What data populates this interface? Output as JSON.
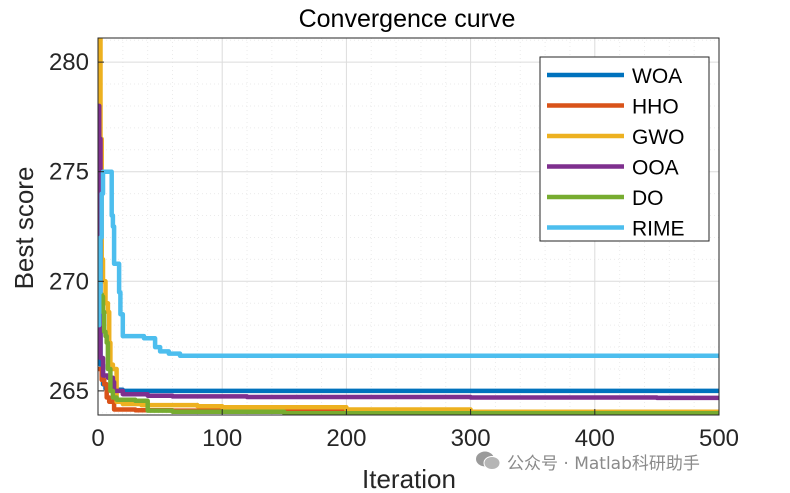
{
  "chart_data": {
    "type": "line",
    "title": "Convergence curve",
    "xlabel": "Iteration",
    "ylabel": "Best score",
    "xlim": [
      0,
      500
    ],
    "ylim": [
      263.9,
      281.1
    ],
    "xticks": [
      0,
      100,
      200,
      300,
      400,
      500
    ],
    "yticks": [
      265,
      270,
      275,
      280
    ],
    "grid": true,
    "minor_grid": true,
    "legend_position": "top-right",
    "series": [
      {
        "name": "WOA",
        "color": "#0072BD",
        "points": [
          [
            0,
            273.0
          ],
          [
            1,
            268.0
          ],
          [
            2,
            266.2
          ],
          [
            4,
            265.3
          ],
          [
            6,
            265.1
          ],
          [
            10,
            265.05
          ],
          [
            20,
            265.0
          ],
          [
            500,
            265.0
          ]
        ]
      },
      {
        "name": "HHO",
        "color": "#D95319",
        "points": [
          [
            0,
            266.0
          ],
          [
            3,
            265.5
          ],
          [
            5,
            265.3
          ],
          [
            7,
            264.7
          ],
          [
            9,
            264.5
          ],
          [
            13,
            264.15
          ],
          [
            30,
            264.12
          ],
          [
            60,
            264.1
          ],
          [
            100,
            264.08
          ],
          [
            290,
            264.06
          ],
          [
            300,
            263.98
          ],
          [
            500,
            263.98
          ]
        ]
      },
      {
        "name": "GWO",
        "color": "#EDB120",
        "points": [
          [
            0,
            281.1
          ],
          [
            1,
            281.1
          ],
          [
            2,
            276.5
          ],
          [
            3,
            271.0
          ],
          [
            4,
            270.0
          ],
          [
            6,
            269.0
          ],
          [
            8,
            268.6
          ],
          [
            9,
            267.2
          ],
          [
            10,
            266.2
          ],
          [
            12,
            266.0
          ],
          [
            15,
            264.5
          ],
          [
            20,
            264.4
          ],
          [
            35,
            264.35
          ],
          [
            80,
            264.3
          ],
          [
            100,
            264.25
          ],
          [
            200,
            264.15
          ],
          [
            300,
            264.05
          ],
          [
            500,
            264.05
          ]
        ]
      },
      {
        "name": "OOA",
        "color": "#7E2F8E",
        "points": [
          [
            0,
            278.0
          ],
          [
            1,
            276.5
          ],
          [
            2,
            266.5
          ],
          [
            4,
            265.7
          ],
          [
            8,
            265.6
          ],
          [
            12,
            265.4
          ],
          [
            13,
            265.0
          ],
          [
            20,
            264.85
          ],
          [
            40,
            264.78
          ],
          [
            60,
            264.75
          ],
          [
            120,
            264.72
          ],
          [
            200,
            264.72
          ],
          [
            300,
            264.7
          ],
          [
            450,
            264.68
          ],
          [
            500,
            264.65
          ]
        ]
      },
      {
        "name": "DO",
        "color": "#77AC30",
        "points": [
          [
            0,
            269.6
          ],
          [
            1,
            269.4
          ],
          [
            3,
            269.3
          ],
          [
            4,
            268.6
          ],
          [
            5,
            267.7
          ],
          [
            6,
            267.5
          ],
          [
            7,
            267.2
          ],
          [
            8,
            266.0
          ],
          [
            10,
            265.0
          ],
          [
            12,
            264.7
          ],
          [
            15,
            264.6
          ],
          [
            30,
            264.55
          ],
          [
            35,
            264.55
          ],
          [
            40,
            264.1
          ],
          [
            60,
            264.05
          ],
          [
            100,
            264.05
          ],
          [
            150,
            263.98
          ],
          [
            500,
            263.96
          ]
        ]
      },
      {
        "name": "RIME",
        "color": "#4DBEEE",
        "points": [
          [
            0,
            268.0
          ],
          [
            1,
            269.5
          ],
          [
            2,
            272.0
          ],
          [
            3,
            274.0
          ],
          [
            4,
            275.0
          ],
          [
            8,
            275.0
          ],
          [
            10,
            275.0
          ],
          [
            11,
            273.0
          ],
          [
            12,
            272.5
          ],
          [
            13,
            270.8
          ],
          [
            16,
            270.8
          ],
          [
            17,
            269.5
          ],
          [
            18,
            268.5
          ],
          [
            20,
            267.5
          ],
          [
            35,
            267.5
          ],
          [
            37,
            267.4
          ],
          [
            45,
            267.4
          ],
          [
            46,
            267.0
          ],
          [
            50,
            266.8
          ],
          [
            55,
            266.8
          ],
          [
            57,
            266.7
          ],
          [
            65,
            266.7
          ],
          [
            66,
            266.6
          ],
          [
            500,
            266.6
          ]
        ]
      }
    ]
  },
  "watermark": {
    "text": "公众号 · Matlab科研助手"
  }
}
